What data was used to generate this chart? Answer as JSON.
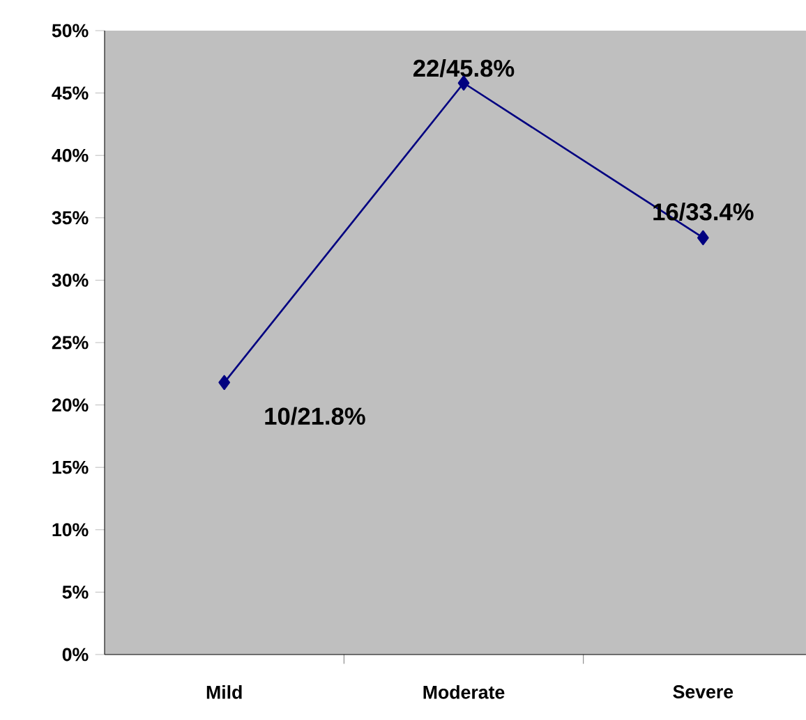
{
  "chart_data": {
    "type": "line",
    "categories": [
      "Mild",
      "Moderate",
      "Severe"
    ],
    "series": [
      {
        "color": "#000080",
        "values": [
          21.8,
          45.8,
          33.4
        ]
      }
    ],
    "value_labels": [
      "10/21.8%",
      "22/45.8%",
      "16/33.4%"
    ],
    "ylim": [
      0,
      50
    ],
    "yticks": [
      {
        "value": 0,
        "label": "0%"
      },
      {
        "value": 5,
        "label": "5%"
      },
      {
        "value": 10,
        "label": "10%"
      },
      {
        "value": 15,
        "label": "15%"
      },
      {
        "value": 20,
        "label": "20%"
      },
      {
        "value": 25,
        "label": "25%"
      },
      {
        "value": 30,
        "label": "30%"
      },
      {
        "value": 35,
        "label": "35%"
      },
      {
        "value": 40,
        "label": "40%"
      },
      {
        "value": 45,
        "label": "45%"
      },
      {
        "value": 50,
        "label": "50%"
      }
    ],
    "marker": "diamond",
    "line_style": "solid",
    "grid": false
  }
}
